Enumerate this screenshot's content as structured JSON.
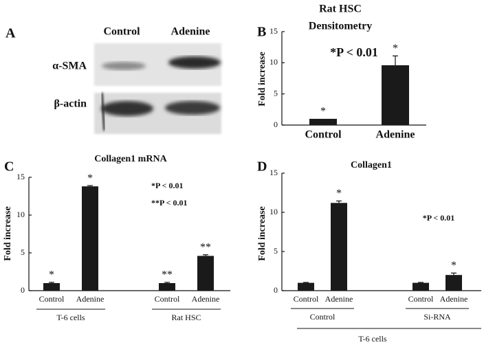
{
  "blot": {
    "panel": "A",
    "columns": [
      "Control",
      "Adenine"
    ],
    "rows": [
      "α-SMA",
      "β-actin"
    ]
  },
  "chart_data": [
    {
      "type": "bar",
      "panel": "B",
      "title": "Rat HSC",
      "subtitle": "Densitometry",
      "annotations": [
        "*P < 0.01"
      ],
      "y_label": "Fold increase",
      "groups": [
        {
          "categories": [
            "Control",
            "Adenine"
          ],
          "values": [
            1,
            9.6
          ],
          "errors": [
            null,
            1.5
          ],
          "bar_labels": [
            "*",
            "*"
          ]
        }
      ],
      "ylim": [
        0,
        15
      ],
      "yticks": [
        0,
        5,
        10,
        15
      ],
      "color": "#1a1a1a"
    },
    {
      "type": "bar",
      "panel": "C",
      "title": "Collagen1 mRNA",
      "annotations": [
        "*P < 0.01",
        "**P < 0.01"
      ],
      "y_label": "Fold increase",
      "groups": [
        {
          "name": "T-6 cells",
          "categories": [
            "Control",
            "Adenine"
          ],
          "values": [
            1,
            13.8
          ],
          "errors": [
            0.1,
            0.1
          ],
          "bar_labels": [
            "*",
            "*"
          ]
        },
        {
          "name": "Rat HSC",
          "categories": [
            "Control",
            "Adenine"
          ],
          "values": [
            1,
            4.6
          ],
          "errors": [
            0.1,
            0.15
          ],
          "bar_labels": [
            "**",
            "**"
          ]
        }
      ],
      "ylim": [
        0,
        15
      ],
      "yticks": [
        0,
        5,
        10,
        15
      ],
      "color": "#1a1a1a"
    },
    {
      "type": "bar",
      "panel": "D",
      "title": "Collagen1",
      "annotations": [
        "*P < 0.01"
      ],
      "y_label": "Fold increase",
      "super_group": "T-6 cells",
      "groups": [
        {
          "name": "Control",
          "categories": [
            "Control",
            "Adenine"
          ],
          "values": [
            1,
            11.2
          ],
          "errors": [
            0.05,
            0.25
          ],
          "bar_labels": [
            null,
            "*"
          ]
        },
        {
          "name": "Si-RNA",
          "categories": [
            "Control",
            "Adenine"
          ],
          "values": [
            1,
            2.0
          ],
          "errors": [
            0.05,
            0.25
          ],
          "bar_labels": [
            null,
            "*"
          ]
        }
      ],
      "ylim": [
        0,
        15
      ],
      "yticks": [
        0,
        5,
        10,
        15
      ],
      "color": "#1a1a1a"
    }
  ]
}
